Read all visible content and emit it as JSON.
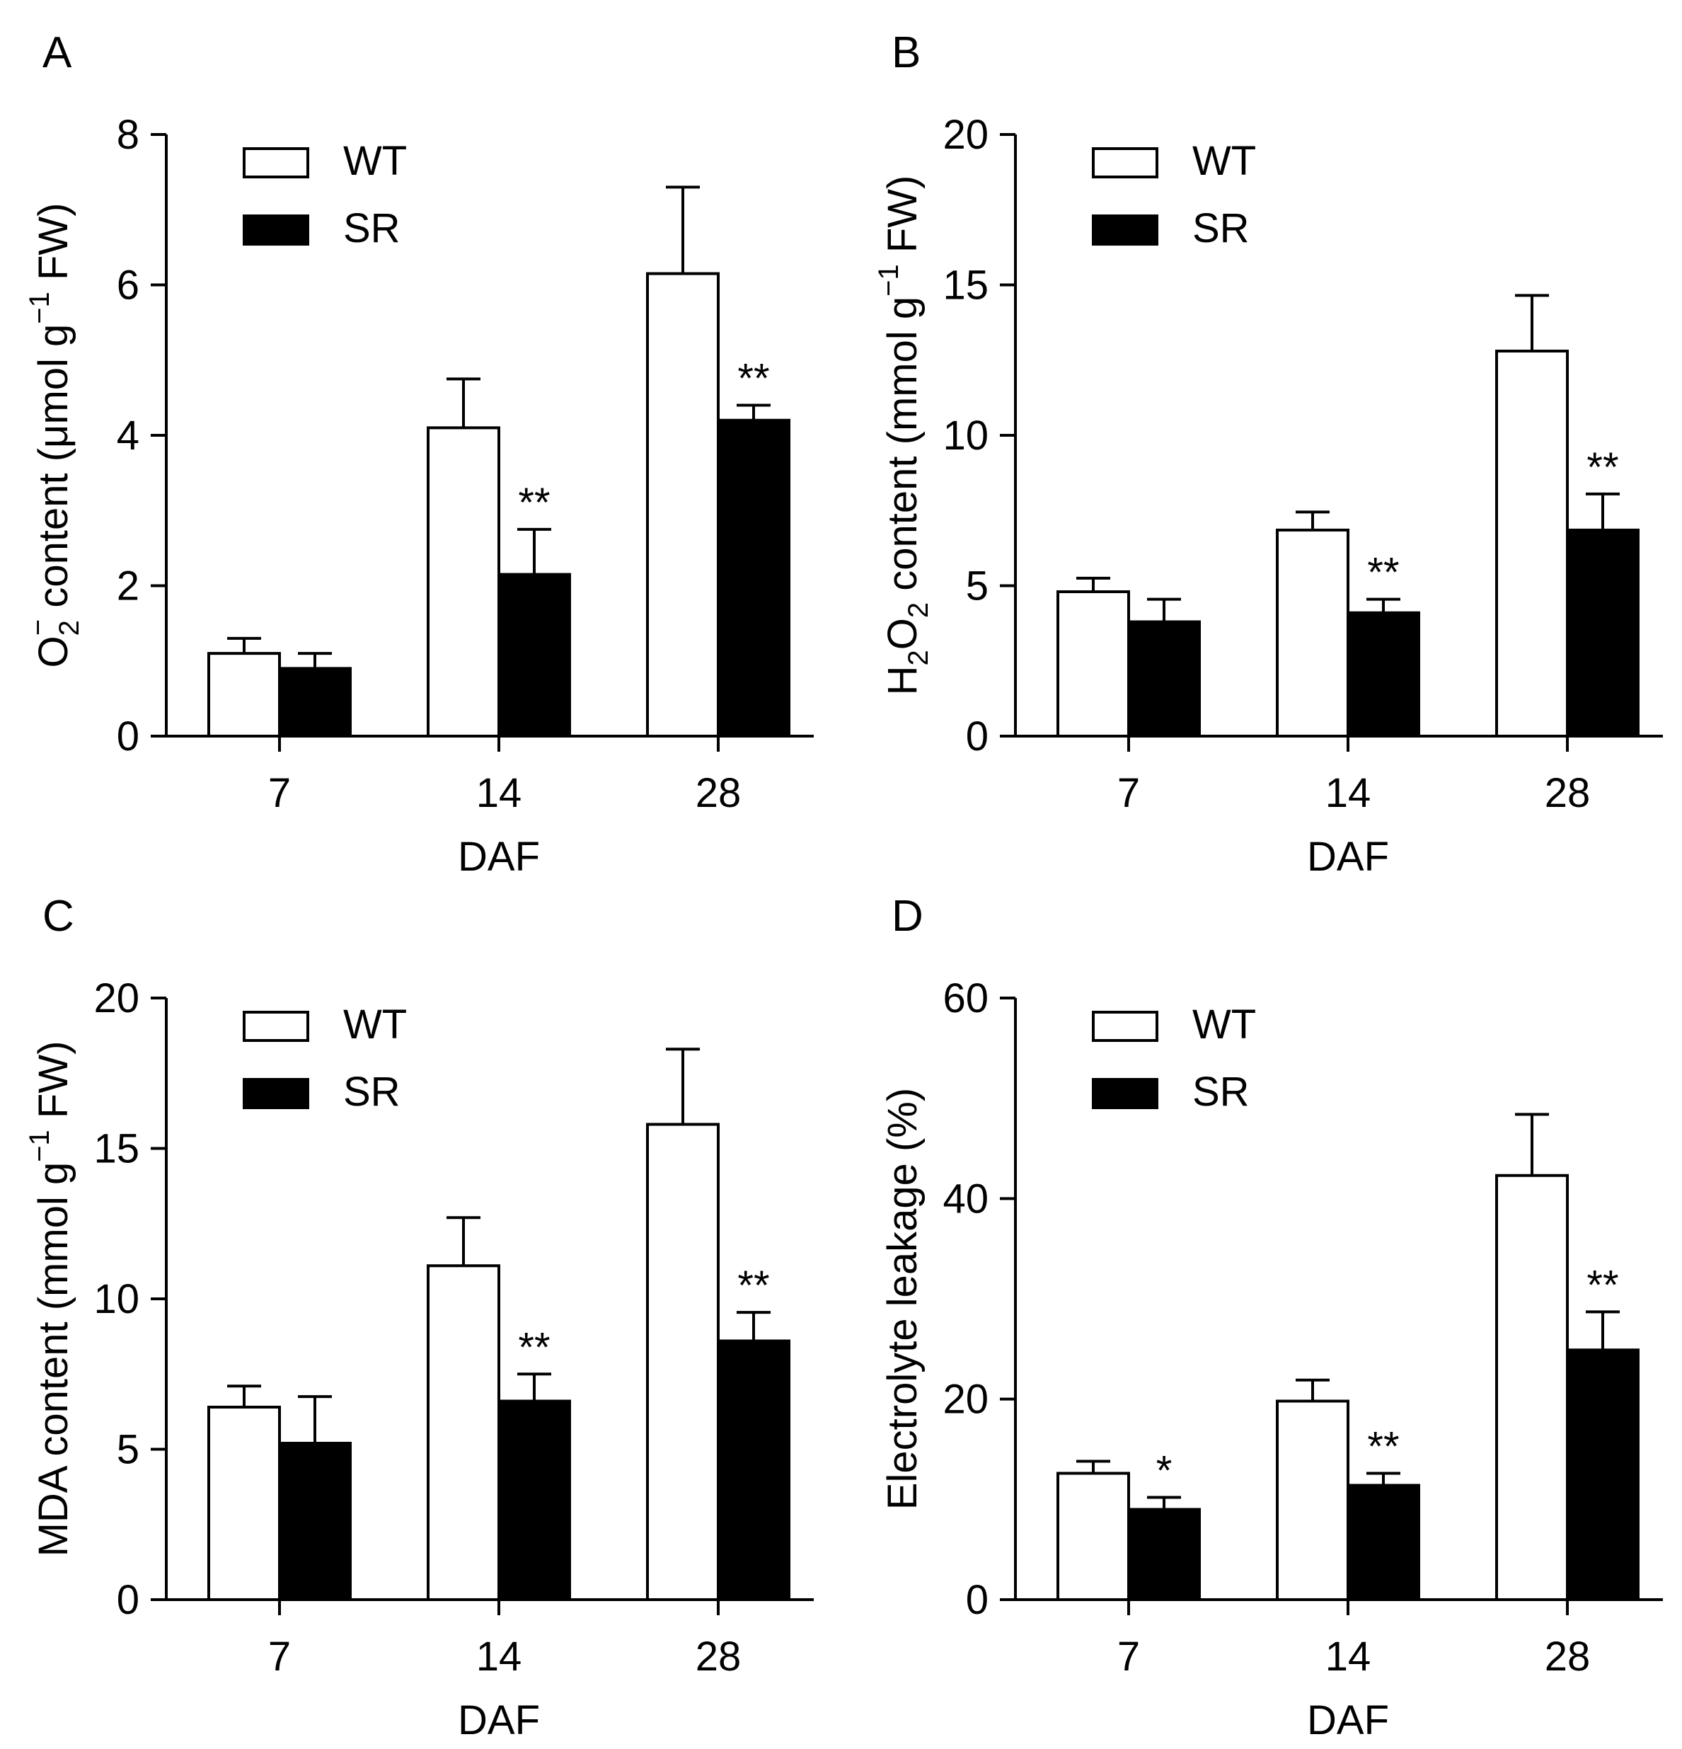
{
  "figure": {
    "background": "#ffffff",
    "ink": "#000000"
  },
  "chart_data": [
    {
      "type": "bar",
      "panel_label": "A",
      "categories": [
        "7",
        "14",
        "28"
      ],
      "xlabel": "DAF",
      "ylabel_parts": {
        "species": "O",
        "subscript": "2",
        "superscript": "−",
        "rest": " content (μmol g",
        "unit_exp": "−1",
        "tail": " FW)"
      },
      "ylim": [
        0,
        8
      ],
      "yticks": [
        0,
        2,
        4,
        6,
        8
      ],
      "legend": {
        "position": "top-left",
        "entries": [
          {
            "label": "WT",
            "color": "#ffffff"
          },
          {
            "label": "SR",
            "color": "#000000"
          }
        ]
      },
      "series": [
        {
          "name": "WT",
          "values": [
            1.1,
            4.1,
            6.15
          ],
          "errors": [
            0.2,
            0.65,
            1.15
          ],
          "marks": [
            "",
            "",
            ""
          ]
        },
        {
          "name": "SR",
          "values": [
            0.9,
            2.15,
            4.2
          ],
          "errors": [
            0.2,
            0.6,
            0.2
          ],
          "marks": [
            "",
            "**",
            "**"
          ]
        }
      ]
    },
    {
      "type": "bar",
      "panel_label": "B",
      "categories": [
        "7",
        "14",
        "28"
      ],
      "xlabel": "DAF",
      "ylabel_parts": {
        "species": "H",
        "subscript": "2",
        "species2": "O",
        "subscript2": "2",
        "rest": " content (mmol g",
        "unit_exp": "−1",
        "tail": " FW)"
      },
      "ylim": [
        0,
        20
      ],
      "yticks": [
        0,
        5,
        10,
        15,
        20
      ],
      "legend": {
        "position": "top-left",
        "entries": [
          {
            "label": "WT",
            "color": "#ffffff"
          },
          {
            "label": "SR",
            "color": "#000000"
          }
        ]
      },
      "series": [
        {
          "name": "WT",
          "values": [
            4.8,
            6.85,
            12.8
          ],
          "errors": [
            0.45,
            0.6,
            1.85
          ],
          "marks": [
            "",
            "",
            ""
          ]
        },
        {
          "name": "SR",
          "values": [
            3.8,
            4.1,
            6.85
          ],
          "errors": [
            0.75,
            0.45,
            1.2
          ],
          "marks": [
            "",
            "**",
            "**"
          ]
        }
      ]
    },
    {
      "type": "bar",
      "panel_label": "C",
      "categories": [
        "7",
        "14",
        "28"
      ],
      "xlabel": "DAF",
      "ylabel_parts": {
        "rest": "MDA content (mmol g",
        "unit_exp": "−1",
        "tail": " FW)"
      },
      "ylim": [
        0,
        20
      ],
      "yticks": [
        0,
        5,
        10,
        15,
        20
      ],
      "legend": {
        "position": "top-left",
        "entries": [
          {
            "label": "WT",
            "color": "#ffffff"
          },
          {
            "label": "SR",
            "color": "#000000"
          }
        ]
      },
      "series": [
        {
          "name": "WT",
          "values": [
            6.4,
            11.1,
            15.8
          ],
          "errors": [
            0.7,
            1.6,
            2.5
          ],
          "marks": [
            "",
            "",
            ""
          ]
        },
        {
          "name": "SR",
          "values": [
            5.2,
            6.6,
            8.6
          ],
          "errors": [
            1.55,
            0.9,
            0.95
          ],
          "marks": [
            "",
            "**",
            "**"
          ]
        }
      ]
    },
    {
      "type": "bar",
      "panel_label": "D",
      "categories": [
        "7",
        "14",
        "28"
      ],
      "xlabel": "DAF",
      "ylabel_parts": {
        "rest": "Electrolyte leakage (%)"
      },
      "ylim": [
        0,
        60
      ],
      "yticks": [
        0,
        20,
        40,
        60
      ],
      "legend": {
        "position": "top-left",
        "entries": [
          {
            "label": "WT",
            "color": "#ffffff"
          },
          {
            "label": "SR",
            "color": "#000000"
          }
        ]
      },
      "series": [
        {
          "name": "WT",
          "values": [
            12.6,
            19.8,
            42.3
          ],
          "errors": [
            1.2,
            2.1,
            6.1
          ],
          "marks": [
            "",
            "",
            ""
          ]
        },
        {
          "name": "SR",
          "values": [
            9.0,
            11.4,
            24.9
          ],
          "errors": [
            1.2,
            1.2,
            3.8
          ],
          "marks": [
            "*",
            "**",
            "**"
          ]
        }
      ]
    }
  ]
}
